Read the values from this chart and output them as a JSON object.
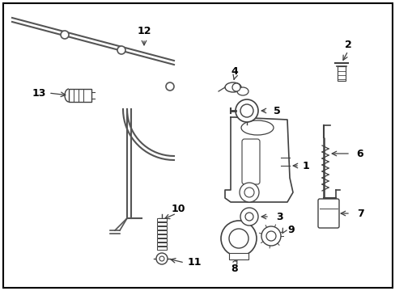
{
  "background_color": "#ffffff",
  "border_color": "#000000",
  "line_color": "#404040",
  "fig_width": 4.89,
  "fig_height": 3.6,
  "dpi": 100,
  "tube_color": "#555555"
}
